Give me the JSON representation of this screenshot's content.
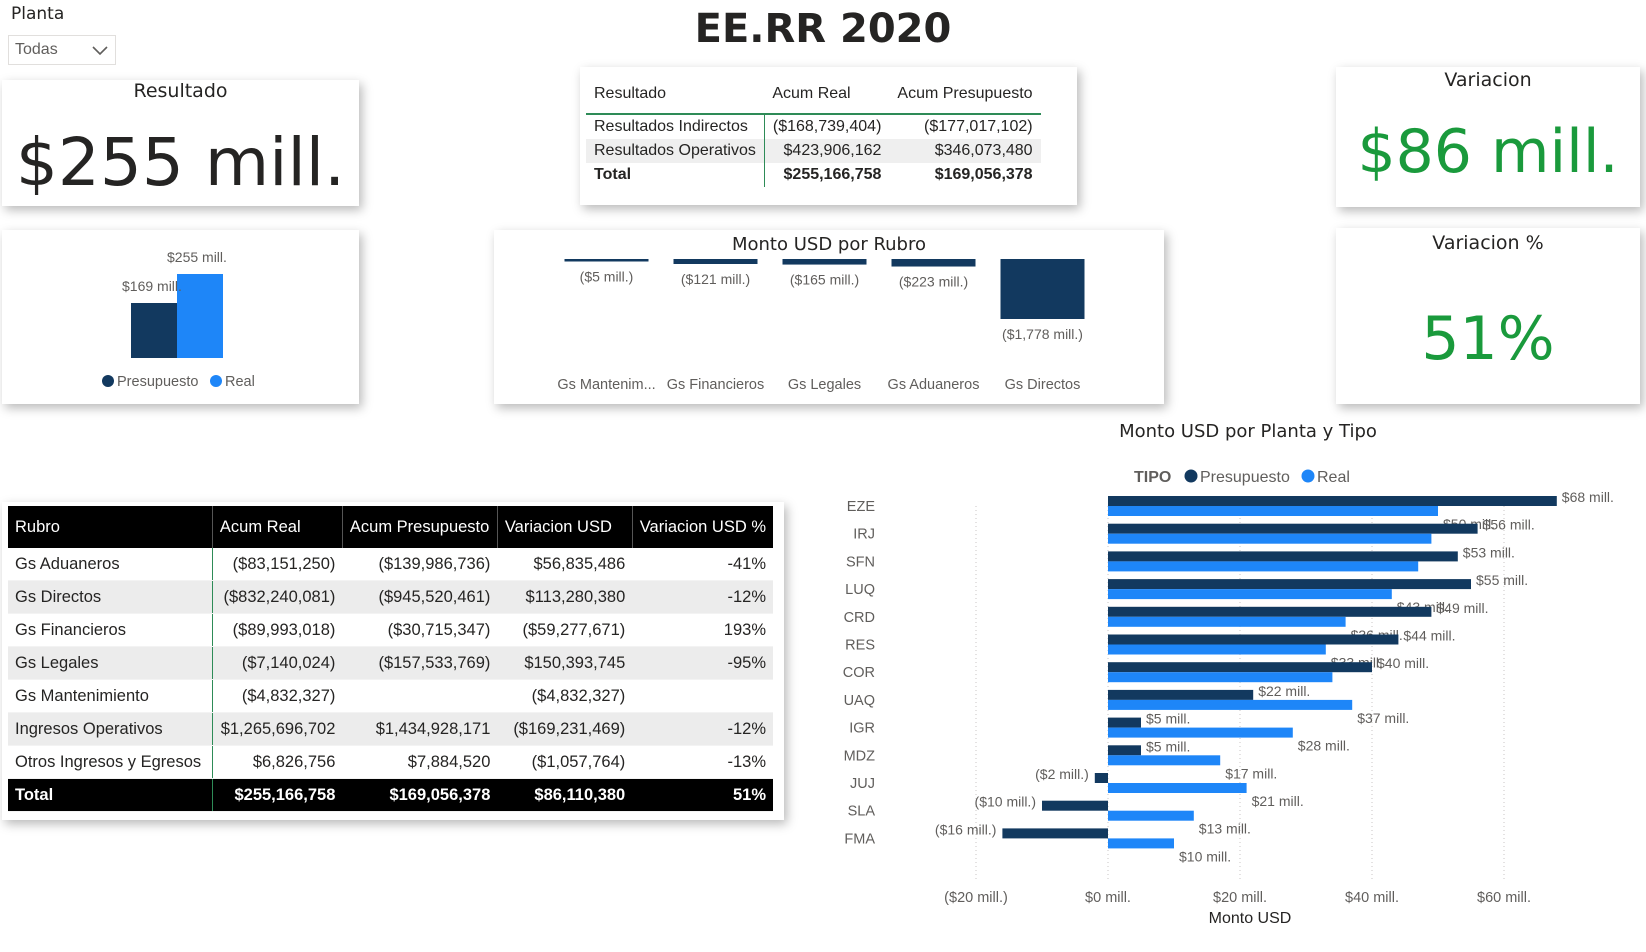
{
  "slicer": {
    "label": "Planta",
    "value": "Todas"
  },
  "page_title": "EE.RR 2020",
  "resultado_card": {
    "title": "Resultado",
    "value": "$255 mill."
  },
  "variacion_card": {
    "title": "Variacion",
    "value": "$86 mill.",
    "color": "#1a9a3c"
  },
  "variacion_pct_card": {
    "title": "Variacion %",
    "value": "51%",
    "color": "#1a9a3c"
  },
  "colors": {
    "presupuesto": "#12395f",
    "real": "#1e86f8",
    "total_bg": "#000000",
    "accent_line": "#2e8b57"
  },
  "summary_table": {
    "headers": [
      "Resultado",
      "Acum Real",
      "Acum Presupuesto"
    ],
    "rows": [
      [
        "Resultados Indirectos",
        "($168,739,404)",
        "($177,017,102)"
      ],
      [
        "Resultados Operativos",
        "$423,906,162",
        "$346,073,480"
      ]
    ],
    "total": [
      "Total",
      "$255,166,758",
      "$169,056,378"
    ]
  },
  "mini_chart": {
    "labels": [
      "$169 mill.",
      "$255 mill."
    ],
    "legend": [
      "Presupuesto",
      "Real"
    ]
  },
  "rubro_table": {
    "headers": [
      "Rubro",
      "Acum Real",
      "Acum Presupuesto",
      "Variacion USD",
      "Variacion USD %"
    ],
    "rows": [
      [
        "Gs Aduaneros",
        "($83,151,250)",
        "($139,986,736)",
        "$56,835,486",
        "-41%"
      ],
      [
        "Gs Directos",
        "($832,240,081)",
        "($945,520,461)",
        "$113,280,380",
        "-12%"
      ],
      [
        "Gs Financieros",
        "($89,993,018)",
        "($30,715,347)",
        "($59,277,671)",
        "193%"
      ],
      [
        "Gs Legales",
        "($7,140,024)",
        "($157,533,769)",
        "$150,393,745",
        "-95%"
      ],
      [
        "Gs Mantenimiento",
        "($4,832,327)",
        "",
        "($4,832,327)",
        ""
      ],
      [
        "Ingresos Operativos",
        "$1,265,696,702",
        "$1,434,928,171",
        "($169,231,469)",
        "-12%"
      ],
      [
        "Otros Ingresos y Egresos",
        "$6,826,756",
        "$7,884,520",
        "($1,057,764)",
        "-13%"
      ]
    ],
    "total": [
      "Total",
      "$255,166,758",
      "$169,056,378",
      "$86,110,380",
      "51%"
    ]
  },
  "chart_data": [
    {
      "type": "bar",
      "title": "",
      "categories": [
        "Presupuesto",
        "Real"
      ],
      "values": [
        169,
        255
      ],
      "value_labels": [
        "$169 mill.",
        "$255 mill."
      ],
      "legend": [
        "Presupuesto",
        "Real"
      ],
      "legend_position": "bottom"
    },
    {
      "type": "bar",
      "title": "Monto USD por Rubro",
      "categories": [
        "Gs Mantenim...",
        "Gs Financieros",
        "Gs Legales",
        "Gs Aduaneros",
        "Gs Directos"
      ],
      "values": [
        -5,
        -121,
        -165,
        -223,
        -1778
      ],
      "value_labels": [
        "($5 mill.)",
        "($121 mill.)",
        "($165 mill.)",
        "($223 mill.)",
        "($1,778 mill.)"
      ]
    },
    {
      "type": "bar",
      "orientation": "horizontal",
      "title": "Monto USD por Planta y Tipo",
      "legend_title": "TIPO",
      "legend_position": "top",
      "xlabel": "Monto USD",
      "xlim": [
        -20,
        65
      ],
      "x_ticks": [
        "($20 mill.)",
        "$0 mill.",
        "$20 mill.",
        "$40 mill.",
        "$60 mill."
      ],
      "x_tick_values": [
        -20,
        0,
        20,
        40,
        60
      ],
      "categories": [
        "EZE",
        "IRJ",
        "SFN",
        "LUQ",
        "CRD",
        "RES",
        "COR",
        "UAQ",
        "IGR",
        "MDZ",
        "JUJ",
        "SLA",
        "FMA"
      ],
      "series": [
        {
          "name": "Presupuesto",
          "values": [
            68,
            56,
            53,
            55,
            49,
            44,
            40,
            22,
            5,
            5,
            -2,
            -10,
            -16
          ],
          "labels": [
            "$68 mill.",
            "$56 mill.",
            "$53 mill.",
            "$55 mill.",
            "$49 mill.",
            "$44 mill.",
            "$40 mill.",
            "$22 mill.",
            "$5 mill.",
            "$5 mill.",
            "($2 mill.)",
            "($10 mill.)",
            "($16 mill.)"
          ]
        },
        {
          "name": "Real",
          "values": [
            50,
            49,
            47,
            43,
            36,
            33,
            34,
            37,
            28,
            17,
            21,
            13,
            10
          ],
          "labels": [
            "$50 mill.",
            "",
            "",
            "$43 mill.",
            "$36 mill.",
            "$33 mill.",
            "",
            "$37 mill.",
            "$28 mill.",
            "$17 mill.",
            "$21 mill.",
            "$13 mill.",
            "$10 mill."
          ]
        }
      ]
    }
  ]
}
